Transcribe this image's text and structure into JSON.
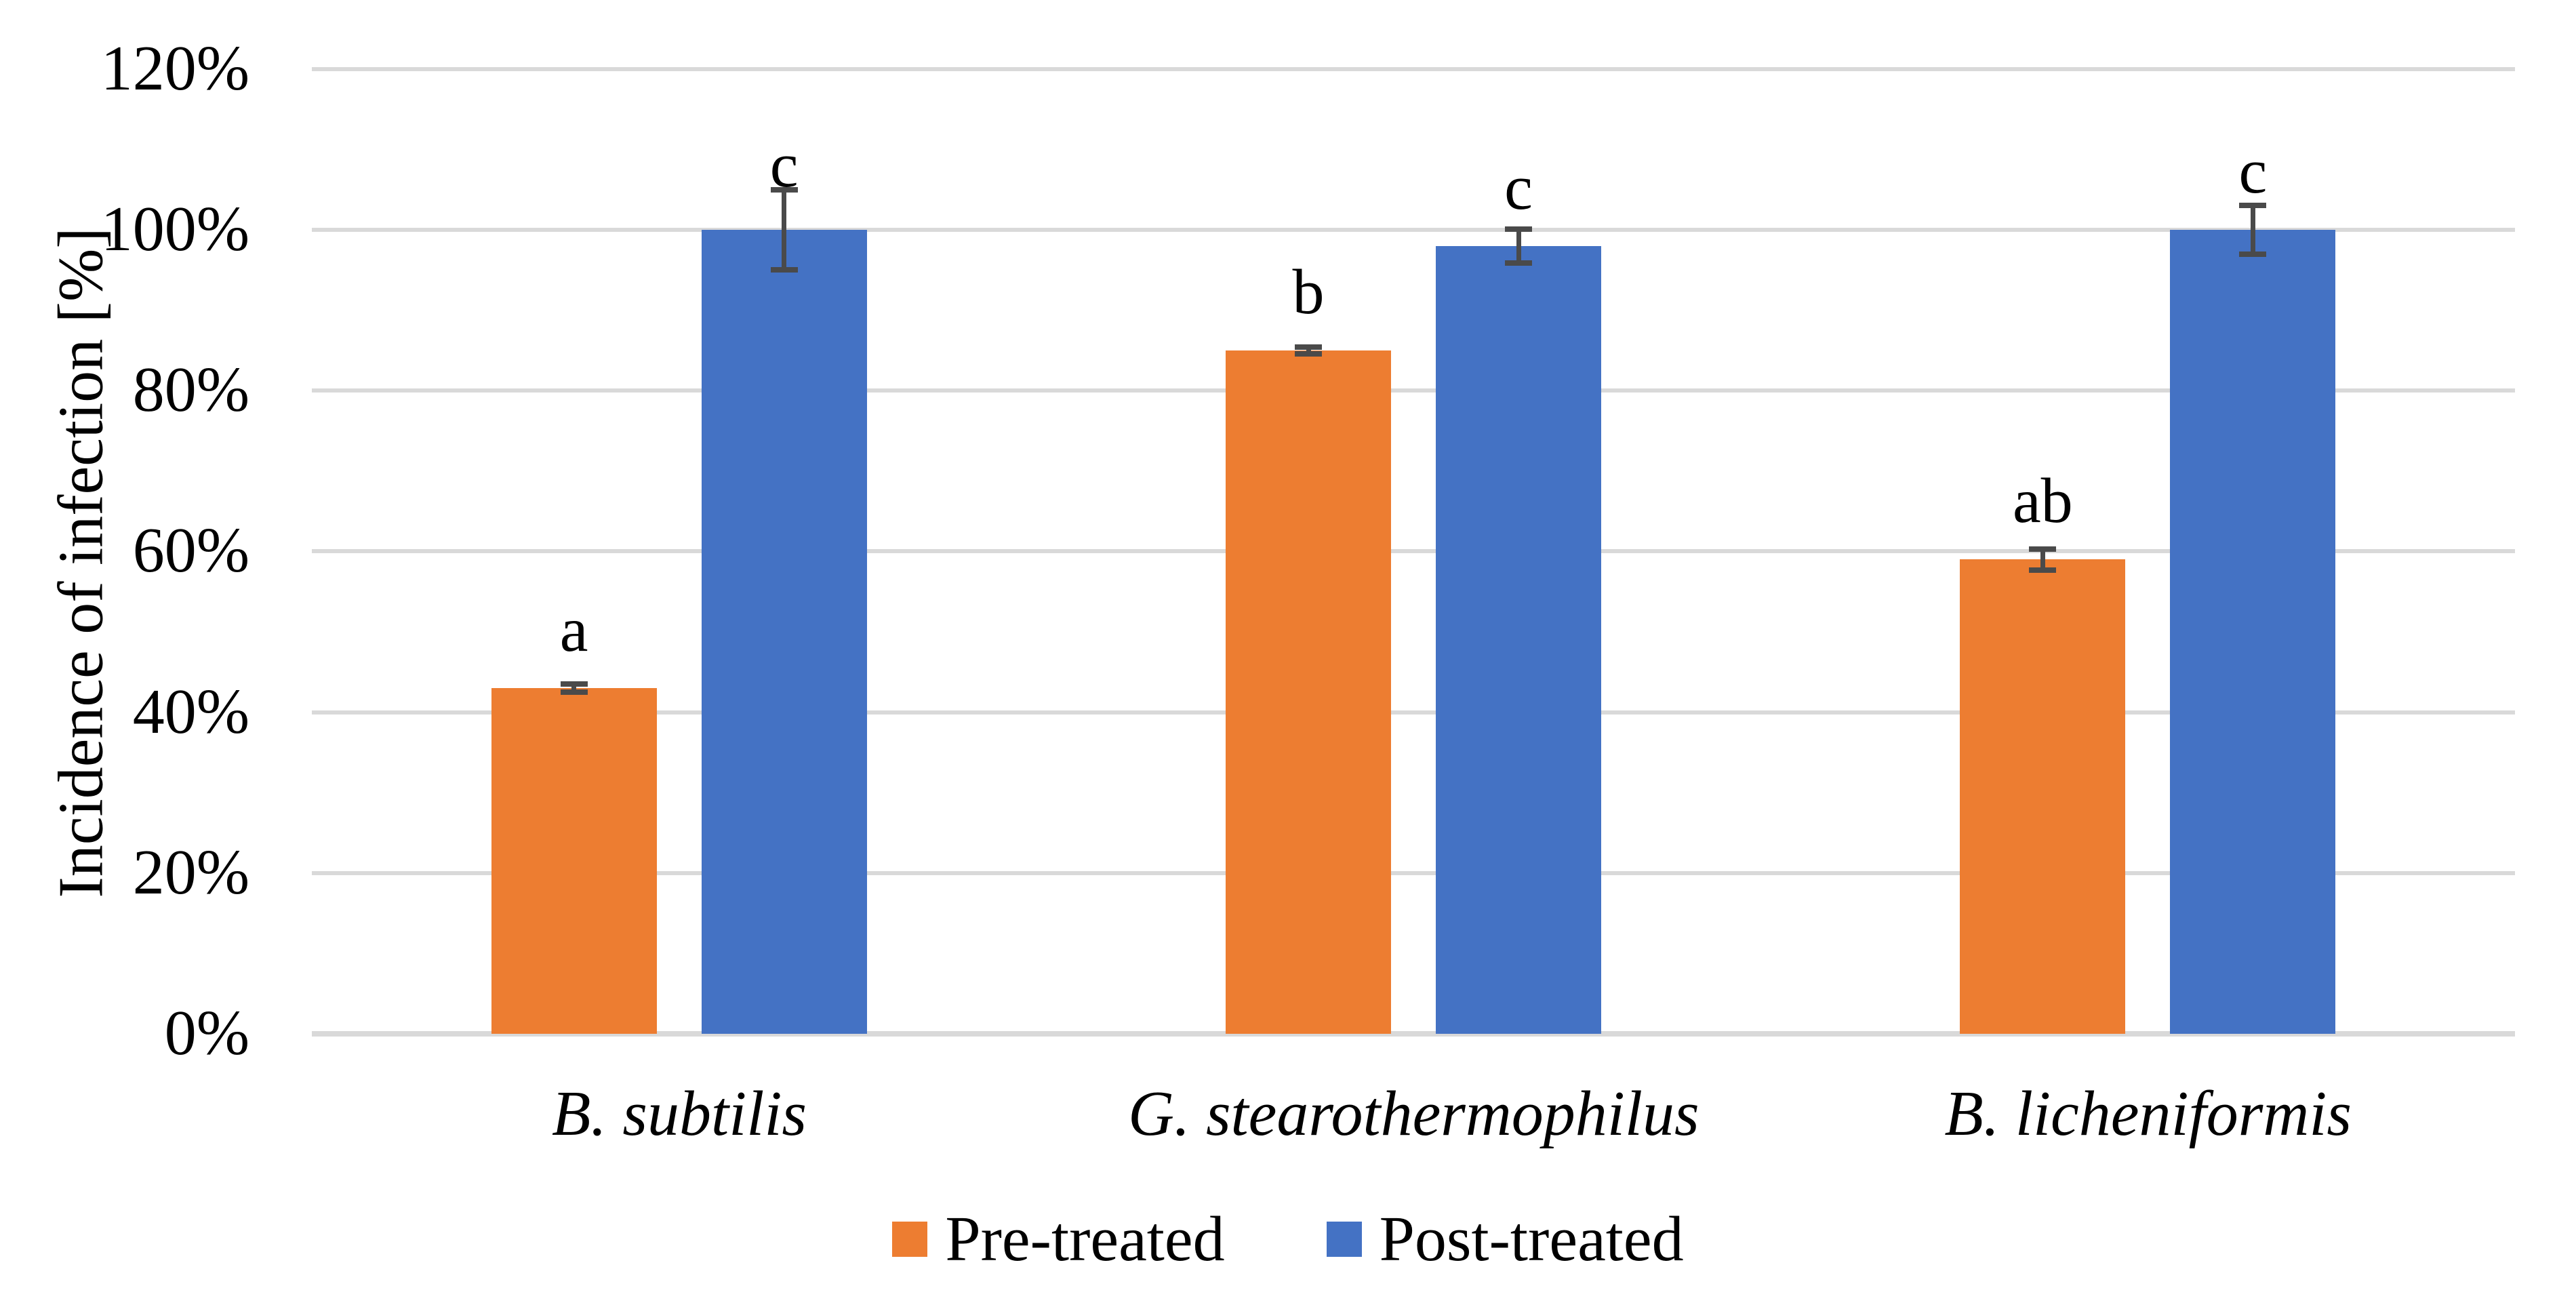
{
  "chart_data": {
    "type": "bar",
    "title": "",
    "ylabel": "Incidence of infection [%]",
    "xlabel": "",
    "categories": [
      "B. subtilis",
      "G. stearothermophilus",
      "B. licheniformis"
    ],
    "categories_style": "italic",
    "series": [
      {
        "name": "Pre-treated",
        "color": "#ED7D31",
        "values": [
          43,
          85,
          59
        ],
        "errors": [
          0.5,
          0.4,
          1.3
        ],
        "significance_letters": [
          "a",
          "b",
          "ab"
        ]
      },
      {
        "name": "Post-treated",
        "color": "#4472C4",
        "values": [
          100,
          98,
          100
        ],
        "errors": [
          5,
          2.1,
          3
        ],
        "significance_letters": [
          "c",
          "c",
          "c"
        ]
      }
    ],
    "y_axis": {
      "min": 0,
      "max": 120,
      "step": 20,
      "tick_labels": [
        "0%",
        "20%",
        "40%",
        "60%",
        "80%",
        "100%",
        "120%"
      ]
    },
    "grid": true,
    "legend_position": "bottom",
    "colors": {
      "gridline": "#D9D9D9",
      "axis_line": "#D9D9D9",
      "error_bar": "#4A4A4A",
      "text": "#000000",
      "background": "#FFFFFF"
    }
  }
}
